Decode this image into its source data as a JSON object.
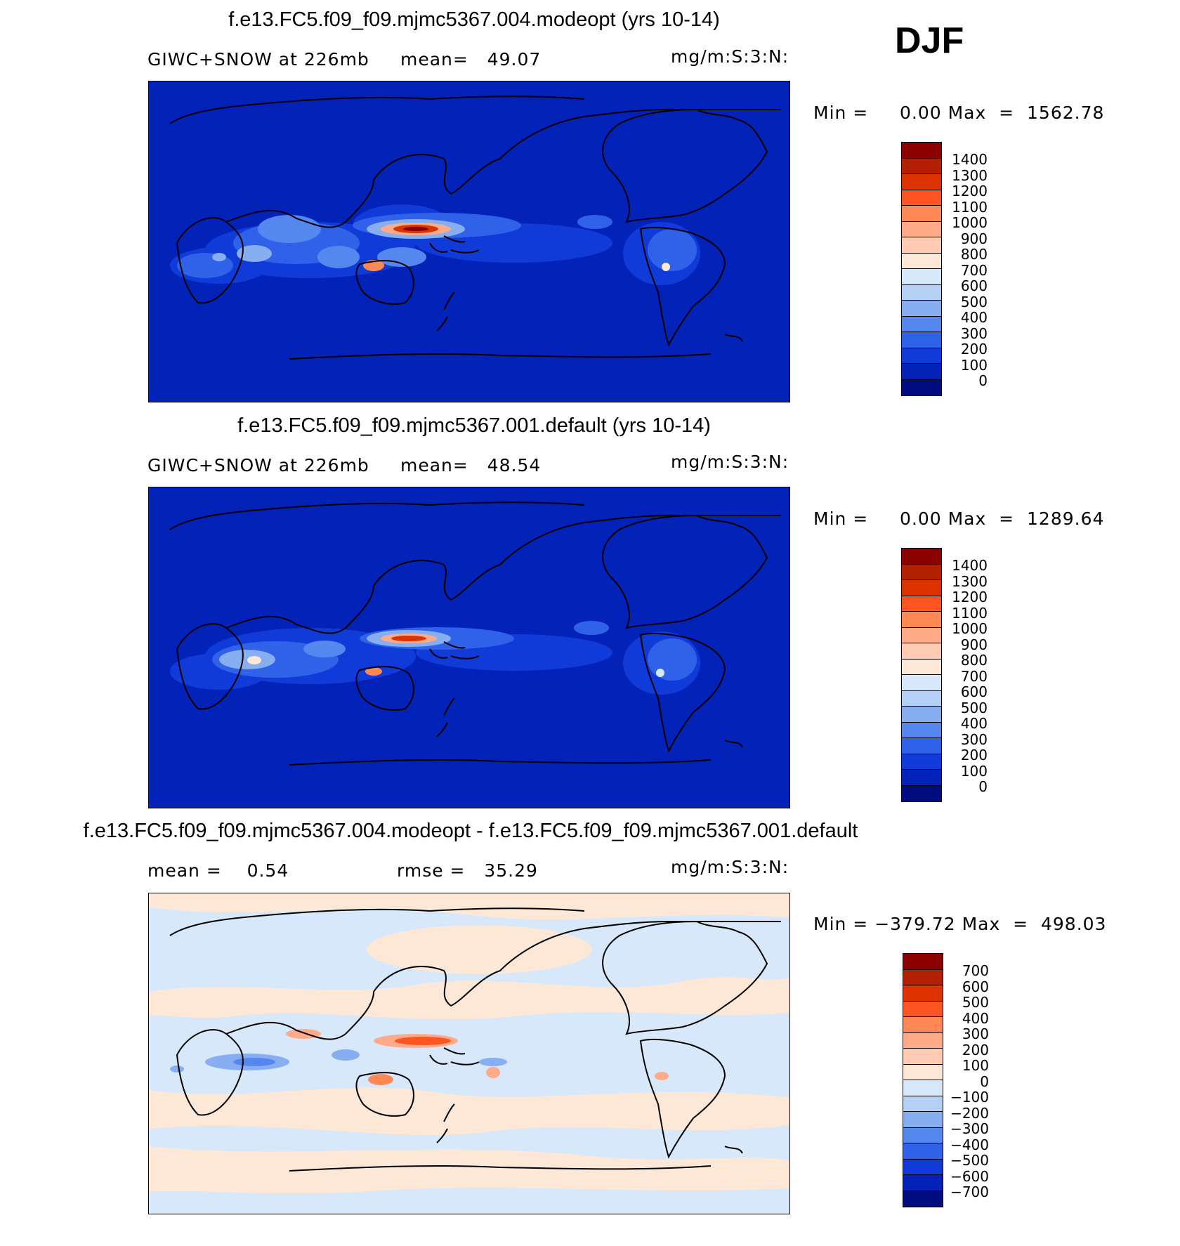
{
  "season": "DJF",
  "panels": [
    {
      "title": "f.e13.FC5.f09_f09.mjmc5367.004.modeopt (yrs 10-14)",
      "left_label": "GIWC+SNOW at 226mb",
      "mean_text": "mean=   49.07",
      "units": "mg/m:S:3:N:",
      "minmax": "Min =     0.00 Max  =  1562.78",
      "colorbar": {
        "labels": [
          "1400",
          "1300",
          "1200",
          "1100",
          "1000",
          "900",
          "800",
          "700",
          "600",
          "500",
          "400",
          "300",
          "200",
          "100",
          "0"
        ],
        "colors": [
          "#8b0000",
          "#b32000",
          "#dd3300",
          "#ff5522",
          "#ff8855",
          "#ffaa88",
          "#ffccb3",
          "#fde8d8",
          "#d6e8fa",
          "#b5d0f5",
          "#86aef0",
          "#5588ee",
          "#2f62e8",
          "#103bd8",
          "#0322b8",
          "#000c80"
        ]
      }
    },
    {
      "title": "f.e13.FC5.f09_f09.mjmc5367.001.default (yrs 10-14)",
      "left_label": "GIWC+SNOW at 226mb",
      "mean_text": "mean=   48.54",
      "units": "mg/m:S:3:N:",
      "minmax": "Min =     0.00 Max  =  1289.64",
      "colorbar": {
        "labels": [
          "1400",
          "1300",
          "1200",
          "1100",
          "1000",
          "900",
          "800",
          "700",
          "600",
          "500",
          "400",
          "300",
          "200",
          "100",
          "0"
        ],
        "colors": [
          "#8b0000",
          "#b32000",
          "#dd3300",
          "#ff5522",
          "#ff8855",
          "#ffaa88",
          "#ffccb3",
          "#fde8d8",
          "#d6e8fa",
          "#b5d0f5",
          "#86aef0",
          "#5588ee",
          "#2f62e8",
          "#103bd8",
          "#0322b8",
          "#000c80"
        ]
      }
    },
    {
      "title": "f.e13.FC5.f09_f09.mjmc5367.004.modeopt - f.e13.FC5.f09_f09.mjmc5367.001.default",
      "left_label": "mean =    0.54",
      "mean_text": "rmse =   35.29",
      "units": "mg/m:S:3:N:",
      "minmax": "Min = −379.72 Max  =  498.03",
      "colorbar": {
        "labels": [
          "700",
          "600",
          "500",
          "400",
          "300",
          "200",
          "100",
          "0",
          "−100",
          "−200",
          "−300",
          "−400",
          "−500",
          "−600",
          "−700"
        ],
        "colors": [
          "#8b0000",
          "#b32000",
          "#dd3300",
          "#ff5522",
          "#ff8855",
          "#ffaa88",
          "#ffccb3",
          "#fde8d8",
          "#d6e8fa",
          "#b5d0f5",
          "#86aef0",
          "#5588ee",
          "#2f62e8",
          "#103bd8",
          "#0322b8",
          "#000c80"
        ]
      }
    }
  ]
}
